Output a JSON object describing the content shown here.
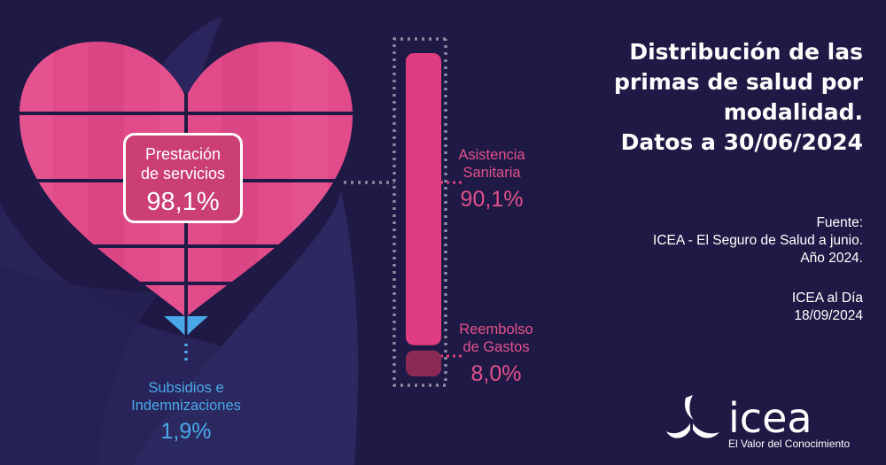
{
  "title_lines": [
    "Distribución de las",
    "primas de salud por",
    "modalidad.",
    "Datos a 30/06/2024"
  ],
  "source_lines": [
    "Fuente:",
    "ICEA - El Seguro de Salud a junio.",
    "Año 2024."
  ],
  "credit_lines": [
    "ICEA al Día",
    "18/09/2024"
  ],
  "brand": {
    "name": "icea",
    "tagline": "El Valor del Conocimiento"
  },
  "colors": {
    "background": "#1f1a45",
    "heart": "#e24b8a",
    "heart_box": "#cb3f73",
    "asistencia": "#e03c82",
    "reembolso": "#8a2a55",
    "subsidios": "#4aa8e8",
    "connector": "#8a8aa0"
  },
  "chart_data": {
    "type": "heart-and-stacked-bar",
    "title": "Distribución de las primas de salud por modalidad. Datos a 30/06/2024",
    "unit": "%",
    "categories": [
      {
        "label_lines": [
          "Prestación",
          "de servicios"
        ],
        "value": 98.1,
        "value_text": "98,1%"
      },
      {
        "label_lines": [
          "Subsidios e",
          "Indemnizaciones"
        ],
        "value": 1.9,
        "value_text": "1,9%"
      }
    ],
    "breakdown": {
      "parent": "Prestación de servicios",
      "segments": [
        {
          "label_lines": [
            "Asistencia",
            "Sanitaria"
          ],
          "value": 90.1,
          "value_text": "90,1%"
        },
        {
          "label_lines": [
            "Reembolso",
            "de Gastos"
          ],
          "value": 8.0,
          "value_text": "8,0%"
        }
      ]
    }
  }
}
